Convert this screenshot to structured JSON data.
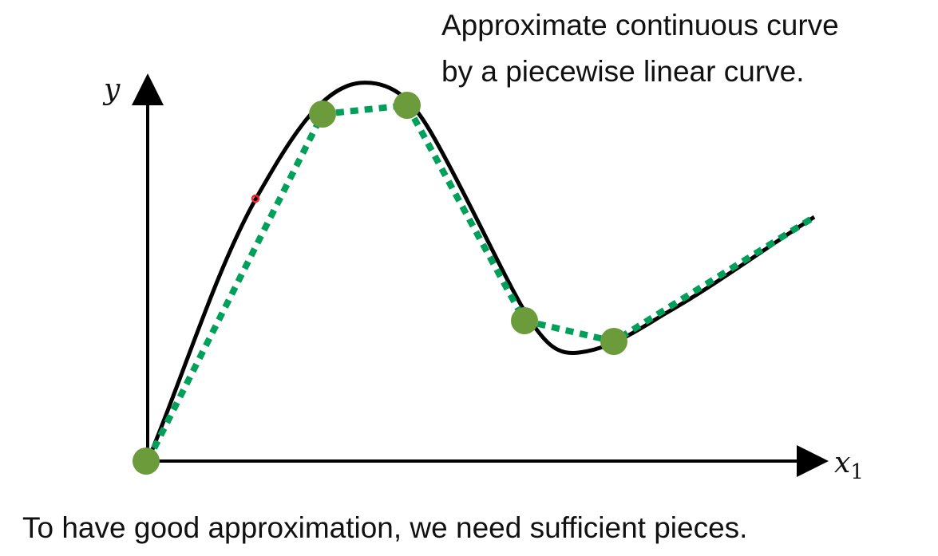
{
  "title_line1": "Approximate continuous curve",
  "title_line2": "by a piecewise linear curve.",
  "caption": "To have good approximation, we need sufficient pieces.",
  "axes": {
    "y_label": "y",
    "x_label": "x",
    "x_subscript": "1"
  },
  "colors": {
    "curve": "#000000",
    "piecewise": "#00a05a",
    "points": "#6b9b3a",
    "pointer": "#ff2020"
  }
}
